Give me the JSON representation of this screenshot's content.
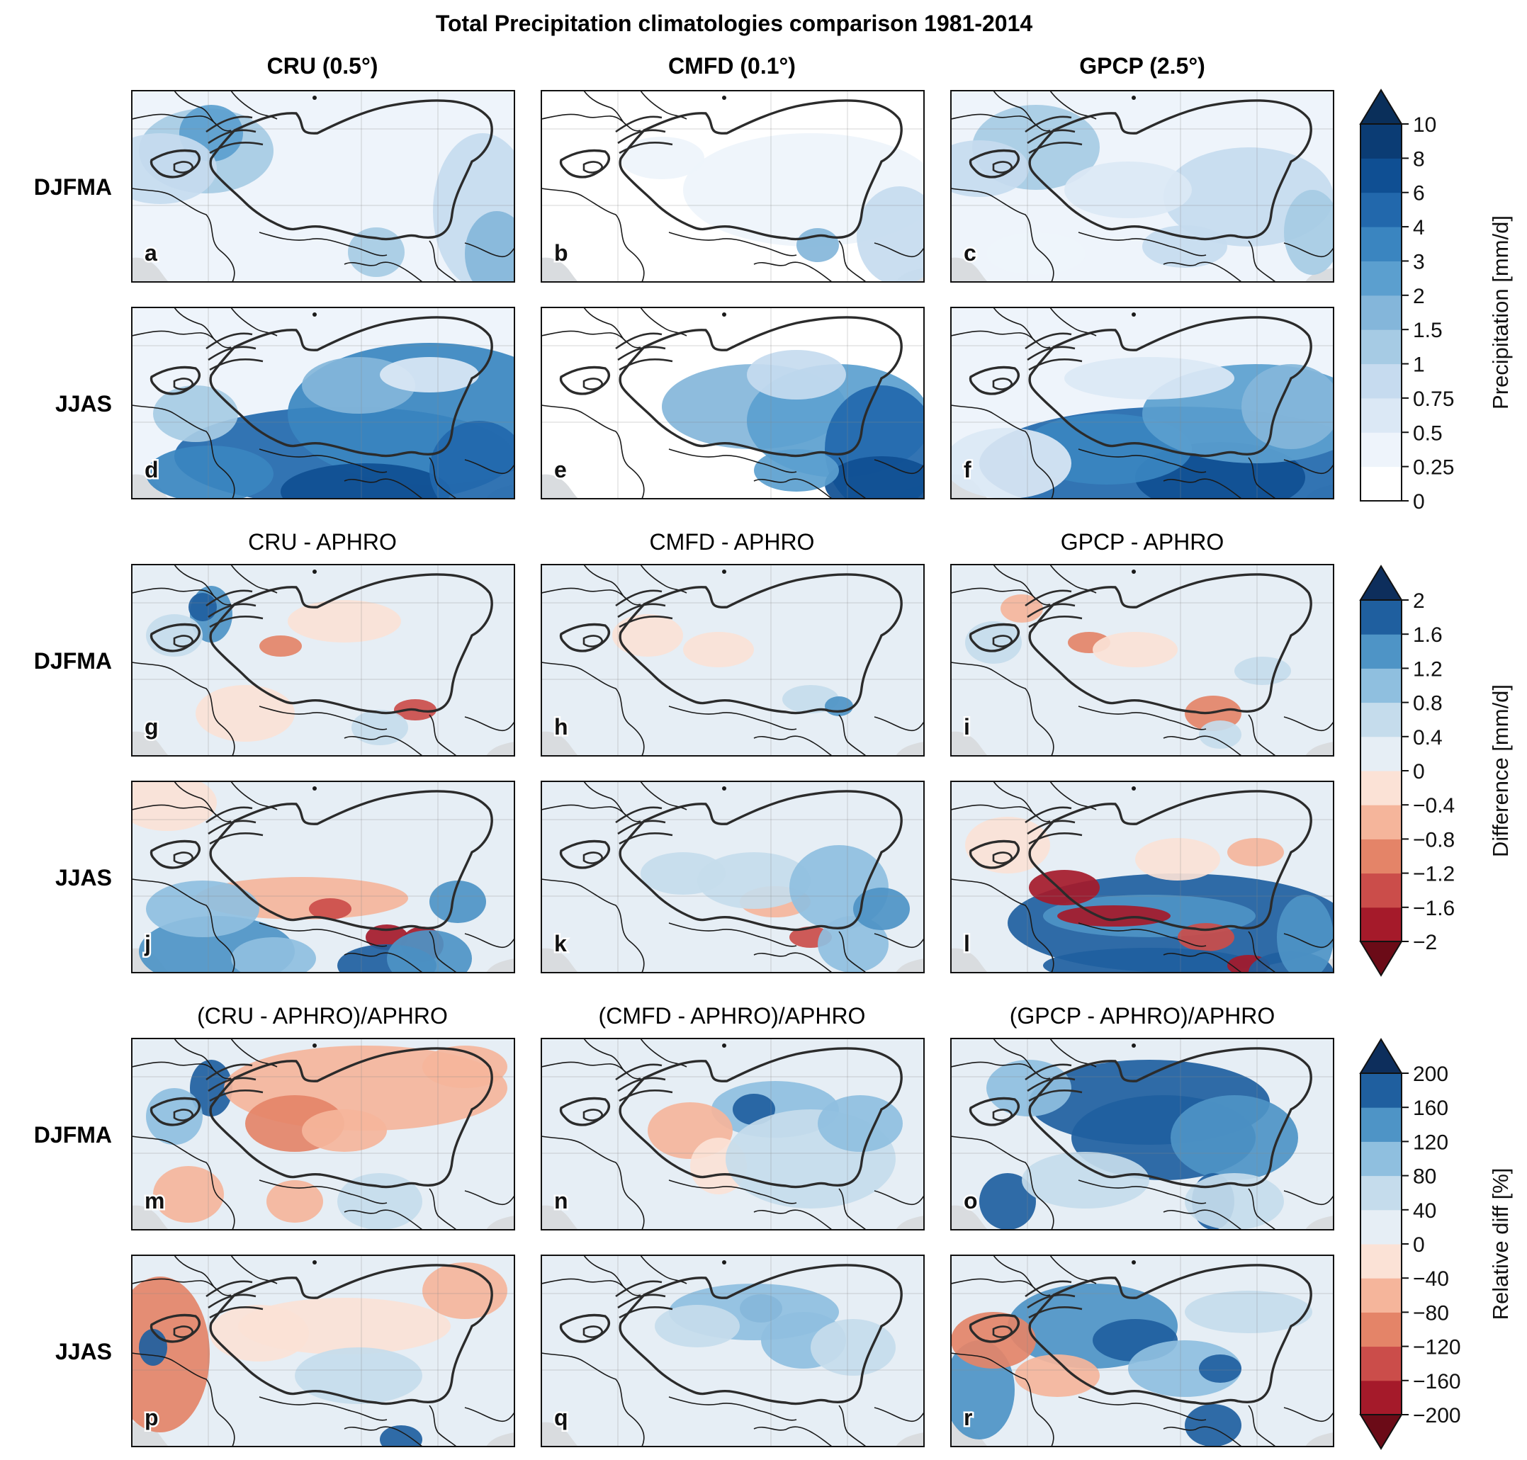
{
  "chart_data": {
    "type": "heatmap",
    "title": "Total Precipitation climatologies comparison 1981-2014",
    "column_titles": [
      "CRU (0.5°)",
      "CMFD (0.1°)",
      "GPCP (2.5°)"
    ],
    "group_titles": [
      [
        "CRU - APHRO",
        "CMFD - APHRO",
        "GPCP - APHRO"
      ],
      [
        "(CRU - APHRO)/APHRO",
        "(CMFD - APHRO)/APHRO",
        "(GPCP - APHRO)/APHRO"
      ]
    ],
    "row_labels": [
      "DJFMA",
      "JJAS",
      "DJFMA",
      "JJAS",
      "DJFMA",
      "JJAS"
    ],
    "panel_letters": [
      "a",
      "b",
      "c",
      "d",
      "e",
      "f",
      "g",
      "h",
      "i",
      "j",
      "k",
      "l",
      "m",
      "n",
      "o",
      "p",
      "q",
      "r"
    ],
    "colorbars": [
      {
        "label": "Precipitation [mm/d]",
        "ticks": [
          "10",
          "8",
          "6",
          "4",
          "3",
          "2",
          "1.5",
          "1",
          "0.75",
          "0.5",
          "0.25",
          "0"
        ],
        "colors": [
          "#ffffff",
          "#eef4fb",
          "#dbe8f5",
          "#c6dbef",
          "#a6cbe4",
          "#84b6da",
          "#5b9fcf",
          "#3a85c0",
          "#2268ac",
          "#0f4f93",
          "#0b3c74"
        ],
        "extend_max_color": "#0a2f5a"
      },
      {
        "label": "Difference [mm/d]",
        "ticks": [
          "2",
          "1.6",
          "1.2",
          "0.8",
          "0.4",
          "0",
          "−0.4",
          "−0.8",
          "−1.2",
          "−1.6",
          "−2"
        ],
        "colors": [
          "#a51a2a",
          "#cb4d4a",
          "#e48468",
          "#f5b59b",
          "#fbe2d6",
          "#e6eef5",
          "#c5dcec",
          "#8fbfdf",
          "#4e94c6",
          "#1f5f9f"
        ],
        "extend_max_color": "#0d2e5c",
        "extend_min_color": "#6b0b17"
      },
      {
        "label": "Relative diff [%]",
        "ticks": [
          "200",
          "160",
          "120",
          "80",
          "40",
          "0",
          "−40",
          "−80",
          "−120",
          "−160",
          "−200"
        ],
        "colors": [
          "#a51a2a",
          "#cb4d4a",
          "#e48468",
          "#f5b59b",
          "#fbe2d6",
          "#e6eef5",
          "#c5dcec",
          "#8fbfdf",
          "#4e94c6",
          "#1f5f9f"
        ],
        "extend_max_color": "#0d2e5c",
        "extend_min_color": "#6b0b17"
      }
    ]
  }
}
